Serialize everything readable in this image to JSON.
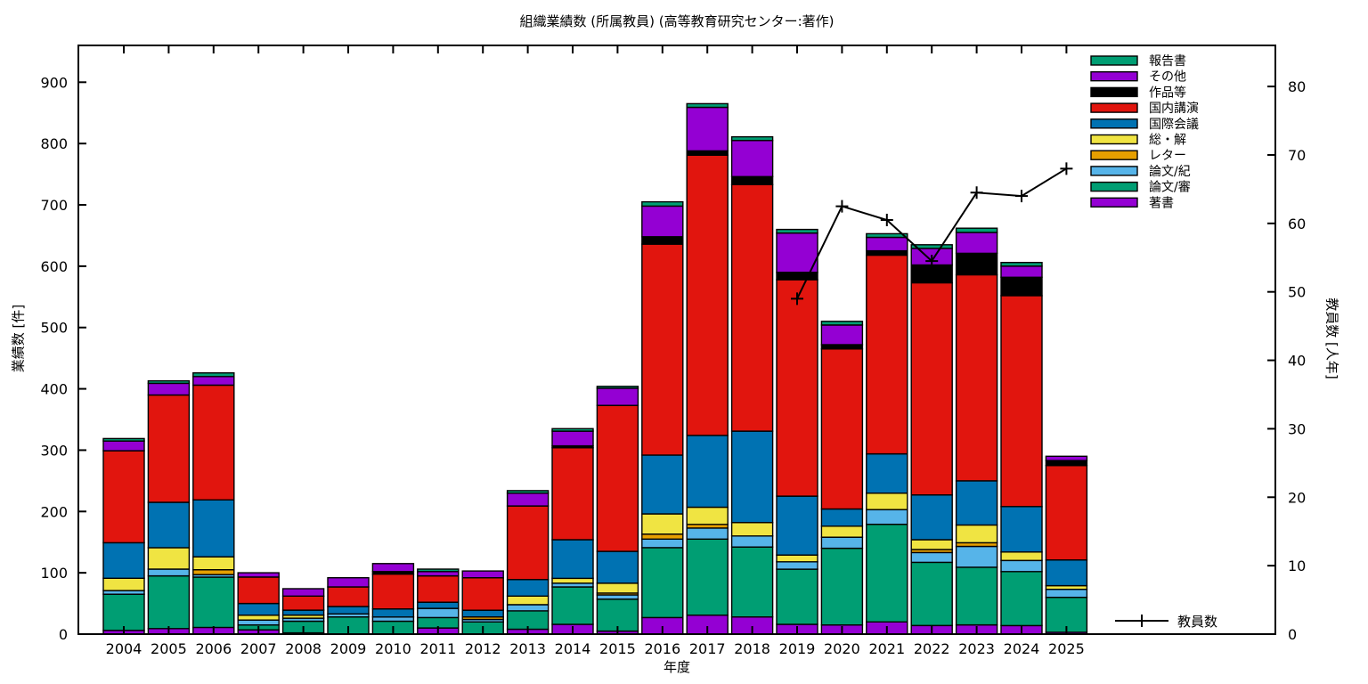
{
  "title": "組織業績数 (所属教員) (高等教育研究センター:著作)",
  "chart_data": {
    "type": "bar",
    "subtype": "stacked-bars-with-line-overlay",
    "title": "組織業績数 (所属教員) (高等教育研究センター:著作)",
    "xlabel": "年度",
    "ylabel": "業績数 [件]",
    "y2label": "教員数 [人年]",
    "grid": false,
    "legend_position": "top-right-inside",
    "categories": [
      2004,
      2005,
      2006,
      2007,
      2008,
      2009,
      2010,
      2011,
      2012,
      2013,
      2014,
      2015,
      2016,
      2017,
      2018,
      2019,
      2020,
      2021,
      2022,
      2023,
      2024,
      2025
    ],
    "ylim": [
      0,
      960
    ],
    "y2lim": [
      0,
      86
    ],
    "yticks": [
      0,
      100,
      200,
      300,
      400,
      500,
      600,
      700,
      800,
      900
    ],
    "y2ticks": [
      0,
      10,
      20,
      30,
      40,
      50,
      60,
      70,
      80
    ],
    "stack_order_bottom_to_top": [
      "著書",
      "論文/審",
      "論文/紀",
      "レター",
      "総・解",
      "国際会議",
      "国内講演",
      "作品等",
      "その他",
      "報告書"
    ],
    "series": [
      {
        "name": "著書",
        "color": "#9400d3",
        "values": [
          6,
          9,
          11,
          7,
          2,
          0,
          0,
          10,
          0,
          8,
          16,
          5,
          27,
          31,
          28,
          16,
          15,
          20,
          14,
          15,
          14,
          3
        ]
      },
      {
        "name": "論文/審",
        "color": "#009e73",
        "values": [
          59,
          86,
          82,
          8,
          19,
          28,
          21,
          17,
          20,
          30,
          61,
          52,
          114,
          124,
          114,
          90,
          125,
          159,
          103,
          94,
          88,
          57
        ]
      },
      {
        "name": "論文/紀",
        "color": "#56b4e9",
        "values": [
          6,
          11,
          4,
          8,
          5,
          5,
          7,
          15,
          4,
          10,
          6,
          7,
          14,
          18,
          18,
          12,
          18,
          24,
          16,
          34,
          18,
          13
        ]
      },
      {
        "name": "レター",
        "color": "#e69f00",
        "values": [
          0,
          0,
          8,
          0,
          0,
          0,
          0,
          0,
          4,
          0,
          0,
          3,
          8,
          6,
          0,
          0,
          0,
          0,
          5,
          6,
          0,
          0
        ]
      },
      {
        "name": "総・解",
        "color": "#f0e442",
        "values": [
          20,
          35,
          21,
          8,
          5,
          0,
          0,
          0,
          0,
          14,
          8,
          16,
          33,
          28,
          22,
          11,
          18,
          27,
          16,
          29,
          14,
          6
        ]
      },
      {
        "name": "国際会議",
        "color": "#0072b2",
        "values": [
          58,
          74,
          93,
          19,
          8,
          12,
          13,
          10,
          11,
          27,
          63,
          52,
          96,
          117,
          149,
          96,
          28,
          64,
          73,
          72,
          74,
          42
        ]
      },
      {
        "name": "国内講演",
        "color": "#e1150e",
        "values": [
          150,
          175,
          187,
          43,
          23,
          32,
          57,
          43,
          53,
          120,
          150,
          238,
          344,
          457,
          402,
          353,
          261,
          324,
          346,
          336,
          344,
          154
        ]
      },
      {
        "name": "作品等",
        "color": "#000000",
        "values": [
          0,
          0,
          0,
          0,
          0,
          0,
          4,
          0,
          0,
          0,
          3,
          0,
          12,
          7,
          13,
          12,
          7,
          7,
          29,
          35,
          30,
          8
        ]
      },
      {
        "name": "その他",
        "color": "#9400d3",
        "values": [
          16,
          19,
          14,
          7,
          12,
          15,
          13,
          7,
          11,
          21,
          24,
          28,
          50,
          71,
          59,
          64,
          32,
          22,
          27,
          34,
          18,
          7
        ]
      },
      {
        "name": "報告書",
        "color": "#009e73",
        "values": [
          4,
          4,
          6,
          0,
          0,
          0,
          0,
          4,
          0,
          4,
          4,
          3,
          7,
          6,
          6,
          6,
          6,
          6,
          6,
          7,
          6,
          0
        ]
      }
    ],
    "bar_totals": [
      319,
      413,
      426,
      100,
      74,
      92,
      115,
      106,
      103,
      234,
      335,
      404,
      705,
      865,
      811,
      660,
      510,
      653,
      635,
      662,
      606,
      290
    ],
    "line_series": {
      "name": "教員数",
      "color": "#000000",
      "marker": "plus",
      "axis": "y2",
      "x": [
        2019,
        2020,
        2021,
        2022,
        2023,
        2024,
        2025
      ],
      "values": [
        49,
        62.5,
        60.5,
        54.5,
        64.5,
        64,
        68
      ]
    }
  },
  "legend": {
    "entries": [
      {
        "label": "報告書",
        "color": "#009e73"
      },
      {
        "label": "その他",
        "color": "#9400d3"
      },
      {
        "label": "作品等",
        "color": "#000000"
      },
      {
        "label": "国内講演",
        "color": "#e1150e"
      },
      {
        "label": "国際会議",
        "color": "#0072b2"
      },
      {
        "label": "総・解",
        "color": "#f0e442"
      },
      {
        "label": "レター",
        "color": "#e69f00"
      },
      {
        "label": "論文/紀",
        "color": "#56b4e9"
      },
      {
        "label": "論文/審",
        "color": "#009e73"
      },
      {
        "label": "著書",
        "color": "#9400d3"
      }
    ],
    "line_key_label": "教員数"
  }
}
